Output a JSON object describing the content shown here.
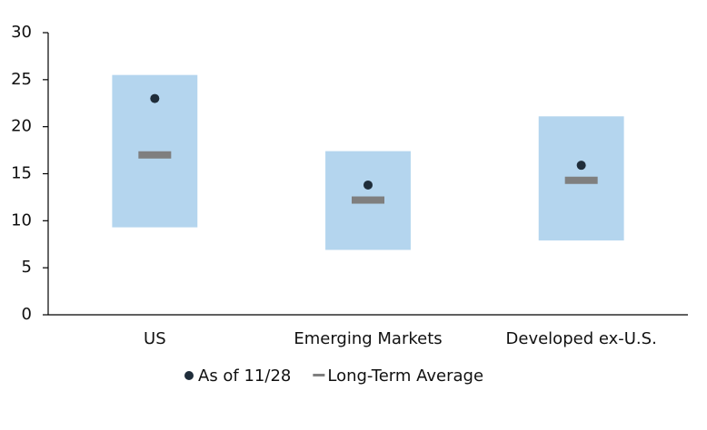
{
  "chart_data": {
    "type": "range",
    "categories": [
      "US",
      "Emerging Markets",
      "Developed ex-U.S."
    ],
    "ranges": {
      "low": [
        9.3,
        6.9,
        7.9
      ],
      "high": [
        25.5,
        17.4,
        21.1
      ],
      "color": "#b4d5ee"
    },
    "series": [
      {
        "name": "As of 11/28",
        "color": "#1f2d3a",
        "marker": "dot",
        "values": [
          23.0,
          13.8,
          15.9
        ]
      },
      {
        "name": "Long-Term Average",
        "color": "#7f7f7f",
        "marker": "dash",
        "values": [
          17.0,
          12.2,
          14.3
        ]
      }
    ],
    "ylim": [
      0,
      30
    ],
    "yticks": [
      0,
      5,
      10,
      15,
      20,
      25,
      30
    ],
    "grid": false
  }
}
